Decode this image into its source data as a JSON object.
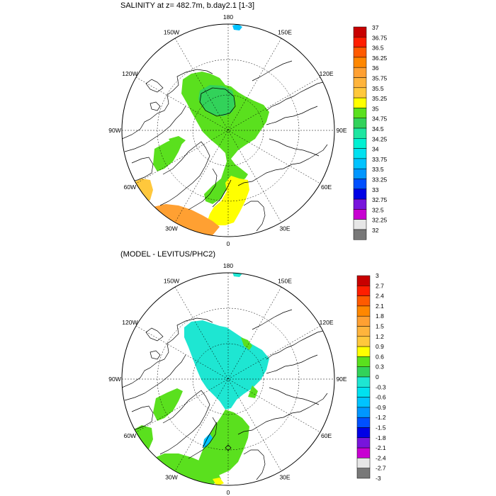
{
  "panel_top": {
    "title": "SALINITY at z= 482.7m, b.day2.1 [1-3]",
    "lon_labels": [
      "180",
      "150E",
      "120E",
      "90E",
      "60E",
      "30E",
      "0",
      "30W",
      "60W",
      "90W",
      "120W",
      "150W"
    ],
    "colorbar": {
      "levels": [
        "37",
        "36.75",
        "36.5",
        "36.25",
        "36",
        "35.75",
        "35.5",
        "35.25",
        "35",
        "34.75",
        "34.5",
        "34.25",
        "34",
        "33.75",
        "33.5",
        "33.25",
        "33",
        "32.75",
        "32.5",
        "32.25",
        "32"
      ],
      "colors": [
        "#c80000",
        "#ff1e00",
        "#ff5a00",
        "#ff8700",
        "#ffa032",
        "#ffb43c",
        "#ffc83c",
        "#ffff00",
        "#5ae01e",
        "#32d25a",
        "#1ee6a0",
        "#00f0d2",
        "#00e1f0",
        "#00c3ff",
        "#0096ff",
        "#0050ff",
        "#0000e6",
        "#7814dc",
        "#c800d2",
        "#e6e6e6",
        "#787878"
      ]
    }
  },
  "panel_bottom": {
    "title": "(MODEL - LEVITUS/PHC2)",
    "lon_labels": [
      "180",
      "150E",
      "120E",
      "90E",
      "60E",
      "30E",
      "0",
      "30W",
      "60W",
      "90W",
      "120W",
      "150W"
    ],
    "colorbar": {
      "levels": [
        "3",
        "2.7",
        "2.4",
        "2.1",
        "1.8",
        "1.5",
        "1.2",
        "0.9",
        "0.6",
        "0.3",
        "0",
        "-0.3",
        "-0.6",
        "-0.9",
        "-1.2",
        "-1.5",
        "-1.8",
        "-2.1",
        "-2.4",
        "-2.7",
        "-3"
      ],
      "colors": [
        "#c80000",
        "#ff1e00",
        "#ff5a00",
        "#ff8700",
        "#ffa032",
        "#ffb43c",
        "#ffc83c",
        "#ffff00",
        "#5ae01e",
        "#32d25a",
        "#1ee6d2",
        "#00e1f0",
        "#00c3ff",
        "#0096ff",
        "#0050ff",
        "#0000e6",
        "#7814dc",
        "#c800d2",
        "#e6e6e6",
        "#787878"
      ]
    }
  }
}
